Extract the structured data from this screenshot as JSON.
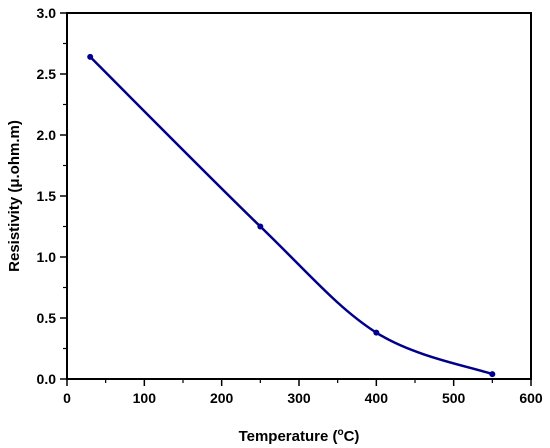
{
  "chart_data": {
    "type": "line",
    "title": "",
    "xlabel": "Temperature (°C)",
    "ylabel": "Resistivity (μ.ohm.m)",
    "xlim": [
      0,
      600
    ],
    "ylim": [
      0,
      3.0
    ],
    "x_ticks": [
      0,
      100,
      200,
      300,
      400,
      500,
      600
    ],
    "y_ticks": [
      0.0,
      0.5,
      1.0,
      1.5,
      2.0,
      2.5,
      3.0
    ],
    "x_tick_labels": [
      "0",
      "100",
      "200",
      "300",
      "400",
      "500",
      "600"
    ],
    "y_tick_labels": [
      "0.0",
      "0.5",
      "1.0",
      "1.5",
      "2.0",
      "2.5",
      "3.0"
    ],
    "grid": false,
    "legend": "none",
    "series": [
      {
        "color": "#00008B",
        "x": [
          30,
          250,
          400,
          550
        ],
        "y": [
          2.64,
          1.25,
          0.38,
          0.04
        ]
      }
    ]
  }
}
